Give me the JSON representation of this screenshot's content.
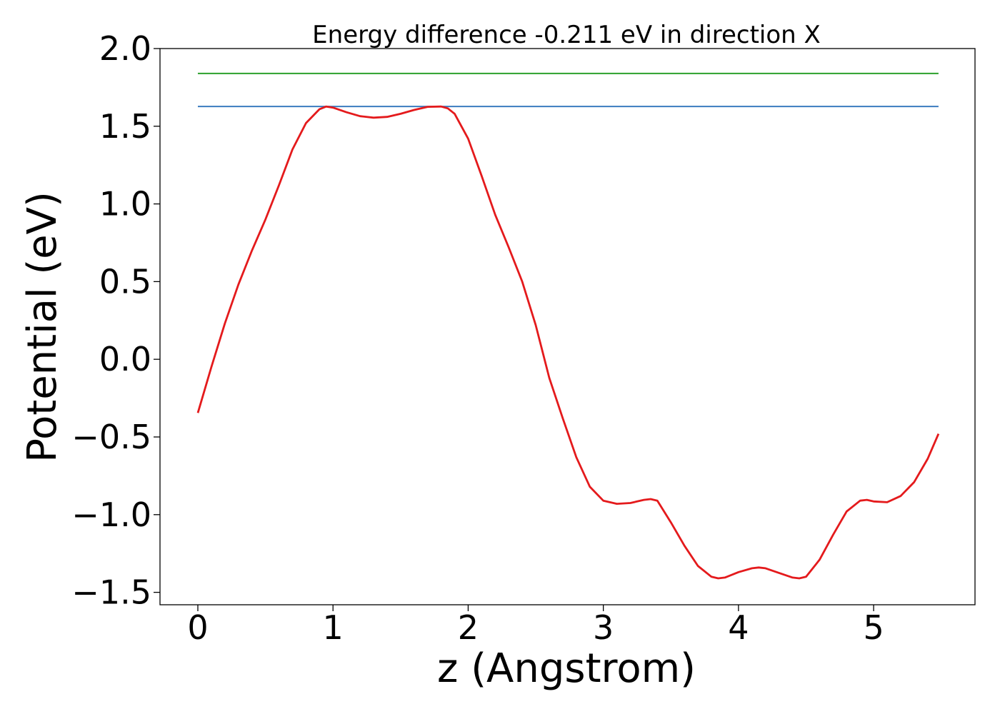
{
  "chart_data": {
    "type": "line",
    "title": "Energy difference -0.211 eV in direction X",
    "xlabel": "z (Angstrom)",
    "ylabel": "Potential (eV)",
    "xlim": [
      -0.28,
      5.75
    ],
    "ylim": [
      -1.58,
      2.0
    ],
    "xticks": [
      0,
      1,
      2,
      3,
      4,
      5
    ],
    "xtick_labels": [
      "0",
      "1",
      "2",
      "3",
      "4",
      "5"
    ],
    "yticks": [
      2.0,
      1.5,
      1.0,
      0.5,
      0.0,
      -0.5,
      -1.0,
      -1.5
    ],
    "ytick_labels": [
      "2.0",
      "1.5",
      "1.0",
      "0.5",
      "0.0",
      "−0.5",
      "−1.0",
      "−1.5"
    ],
    "grid": false,
    "legend": false,
    "series": [
      {
        "kind": "hline",
        "color": "#3b7bbf",
        "y": 1.627,
        "x": [
          0,
          5.48
        ]
      },
      {
        "kind": "hline",
        "color": "#2ca02c",
        "y": 1.84,
        "x": [
          0,
          5.48
        ]
      },
      {
        "kind": "curve",
        "color": "#e41a1c",
        "x": [
          0.0,
          0.1,
          0.2,
          0.3,
          0.4,
          0.5,
          0.6,
          0.7,
          0.8,
          0.9,
          0.95,
          1.0,
          1.1,
          1.2,
          1.3,
          1.4,
          1.5,
          1.6,
          1.7,
          1.8,
          1.85,
          1.9,
          2.0,
          2.1,
          2.2,
          2.3,
          2.4,
          2.5,
          2.6,
          2.7,
          2.8,
          2.9,
          3.0,
          3.1,
          3.2,
          3.3,
          3.35,
          3.4,
          3.5,
          3.6,
          3.7,
          3.8,
          3.85,
          3.9,
          4.0,
          4.1,
          4.15,
          4.2,
          4.3,
          4.4,
          4.45,
          4.5,
          4.6,
          4.7,
          4.8,
          4.9,
          4.95,
          5.0,
          5.1,
          5.2,
          5.3,
          5.4,
          5.48
        ],
        "y": [
          -0.345,
          -0.05,
          0.23,
          0.48,
          0.7,
          0.9,
          1.12,
          1.35,
          1.52,
          1.61,
          1.627,
          1.62,
          1.59,
          1.565,
          1.555,
          1.56,
          1.58,
          1.605,
          1.625,
          1.627,
          1.615,
          1.58,
          1.42,
          1.18,
          0.93,
          0.72,
          0.5,
          0.22,
          -0.12,
          -0.38,
          -0.63,
          -0.82,
          -0.91,
          -0.93,
          -0.925,
          -0.905,
          -0.9,
          -0.91,
          -1.05,
          -1.2,
          -1.33,
          -1.4,
          -1.41,
          -1.405,
          -1.37,
          -1.345,
          -1.34,
          -1.345,
          -1.375,
          -1.405,
          -1.41,
          -1.4,
          -1.29,
          -1.13,
          -0.98,
          -0.91,
          -0.905,
          -0.915,
          -0.92,
          -0.88,
          -0.79,
          -0.64,
          -0.48
        ]
      }
    ]
  }
}
